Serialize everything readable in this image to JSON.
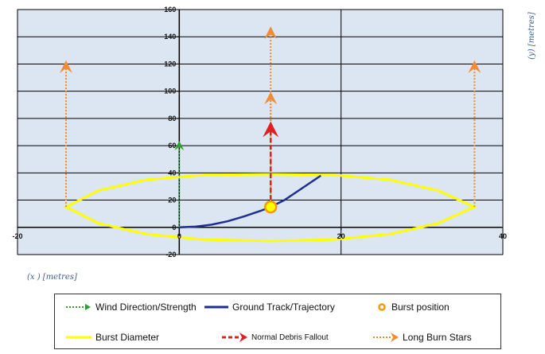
{
  "chart_data": {
    "type": "line",
    "xlim": [
      -20,
      40
    ],
    "ylim": [
      -20,
      160
    ],
    "xticks": [
      -20,
      0,
      20,
      40
    ],
    "yticks": [
      -20,
      0,
      20,
      40,
      60,
      80,
      100,
      120,
      140,
      160
    ],
    "xlabel": "(x ) [metres]",
    "ylabel": "(y) [metres]",
    "grid": true,
    "background": "#dce6f2",
    "series": [
      {
        "name": "Wind Direction/Strength",
        "type": "arrow",
        "color": "#2e9e2e",
        "style": "dotted",
        "x": [
          0,
          0
        ],
        "y": [
          0,
          60
        ]
      },
      {
        "name": "Ground Track/Trajectory",
        "type": "line",
        "color": "#1f2f8f",
        "style": "solid",
        "x": [
          0,
          2,
          4,
          6,
          8,
          10,
          11.3,
          13,
          15,
          17.5
        ],
        "y": [
          0,
          0.5,
          2,
          4.5,
          8,
          12,
          15,
          20,
          28,
          38
        ]
      },
      {
        "name": "Burst position",
        "type": "point",
        "color": "#f29a00",
        "fill": "#ffff00",
        "x": [
          11.3
        ],
        "y": [
          15
        ]
      },
      {
        "name": "Burst Diameter",
        "type": "closed",
        "color": "#ffff00",
        "style": "solid",
        "x": [
          -14,
          -10,
          -4,
          3,
          11.3,
          19,
          26,
          32,
          36.5,
          32,
          26,
          19,
          11.3,
          3,
          -4,
          -10,
          -14
        ],
        "y": [
          15,
          27,
          35,
          38.5,
          39,
          38.5,
          35,
          27,
          15,
          3,
          -5,
          -9,
          -10,
          -9,
          -5,
          3,
          15
        ]
      },
      {
        "name": "Normal Debris Fallout",
        "type": "arrow",
        "color": "#e02020",
        "style": "dashed",
        "x": [
          11.3,
          11.3
        ],
        "y": [
          15,
          72
        ]
      },
      {
        "name": "Long Burn Stars",
        "type": "arrows",
        "color": "#f08c35",
        "style": "dotted",
        "arrows": [
          {
            "x": [
              -14,
              -14
            ],
            "y": [
              15,
              118
            ]
          },
          {
            "x": [
              36.5,
              36.5
            ],
            "y": [
              15,
              118
            ]
          },
          {
            "x": [
              11.3,
              11.3
            ],
            "y": [
              15,
              143
            ]
          },
          {
            "x": [
              11.3,
              11.3
            ],
            "y": [
              15,
              95
            ]
          }
        ]
      }
    ]
  },
  "legend": {
    "items": [
      {
        "label": "Wind Direction/Strength",
        "color": "#2e9e2e",
        "kind": "dotted-arrow"
      },
      {
        "label": "Ground Track/Trajectory",
        "color": "#1f2f8f",
        "kind": "line"
      },
      {
        "label": "Burst position",
        "color": "#f29a00",
        "kind": "circle"
      },
      {
        "label": "Burst Diameter",
        "color": "#ffff00",
        "kind": "line"
      },
      {
        "label": "Normal Debris Fallout",
        "color": "#e02020",
        "kind": "dashed-arrow"
      },
      {
        "label": "Long Burn Stars",
        "color": "#f08c35",
        "kind": "dotted-arrow"
      }
    ]
  }
}
